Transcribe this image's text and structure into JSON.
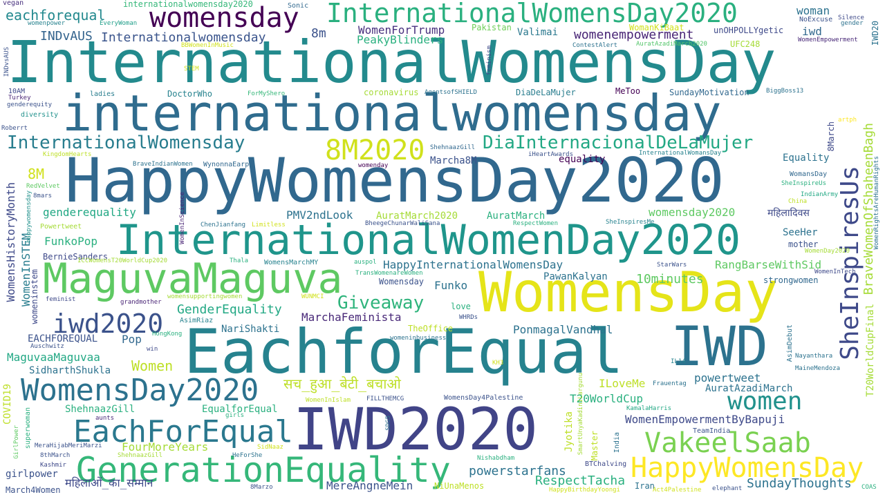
{
  "words": [
    {
      "text": "InternationalWomensDay",
      "color": "#238a8d"
    },
    {
      "text": "internationalwomensday",
      "color": "#2f6c8e"
    },
    {
      "text": "HappyWomensDay2020",
      "color": "#31688e"
    },
    {
      "text": "InternationalWomenDay2020",
      "color": "#1f958b"
    },
    {
      "text": "WomensDay",
      "color": "#e5e419"
    },
    {
      "text": "EachforEqual",
      "color": "#26828e"
    },
    {
      "text": "IWD",
      "color": "#2c728e"
    },
    {
      "text": "IWD2020",
      "color": "#414487"
    },
    {
      "text": "MaguvaMaguva",
      "color": "#5ec962"
    },
    {
      "text": "GenerationEquality",
      "color": "#35b779"
    },
    {
      "text": "EachForEqual",
      "color": "#2a788e"
    },
    {
      "text": "WomensDay2020",
      "color": "#2c728e"
    },
    {
      "text": "HappyWomensDay",
      "color": "#fde725"
    },
    {
      "text": "VakeelSaab",
      "color": "#7ad151"
    },
    {
      "text": "InternationalWomensDay2020",
      "color": "#2ab07f"
    },
    {
      "text": "womensday",
      "color": "#440154"
    },
    {
      "text": "InternationalWomensday",
      "color": "#287d8e"
    },
    {
      "text": "DiaInternacionalDeLaMujer",
      "color": "#22a884"
    },
    {
      "text": "8M2020",
      "color": "#d0e11c"
    },
    {
      "text": "iwd2020",
      "color": "#3b528b"
    },
    {
      "text": "Giveaway",
      "color": "#2fb47c"
    },
    {
      "text": "women",
      "color": "#21918c"
    },
    {
      "text": "SheInspiresUs",
      "color": "#3e4989"
    },
    {
      "text": "eachforequal",
      "color": "#23898e"
    },
    {
      "text": "INDvAUS",
      "color": "#33638d"
    },
    {
      "text": "Internationalwomensday",
      "color": "#3a548c"
    },
    {
      "text": "8m",
      "color": "#3b528b"
    },
    {
      "text": "WomenForTrump",
      "color": "#472f7d"
    },
    {
      "text": "PeakyBlinders",
      "color": "#2ab07f"
    },
    {
      "text": "womenempowerment",
      "color": "#482475"
    },
    {
      "text": "woman",
      "color": "#2c728e"
    },
    {
      "text": "iwd",
      "color": "#31688e"
    },
    {
      "text": "Pakistan",
      "color": "#6ece58"
    },
    {
      "text": "Valimai",
      "color": "#2a788e"
    },
    {
      "text": "unOHPOLLYgetic",
      "color": "#3e4989"
    },
    {
      "text": "NoExcuse",
      "color": "#3b528b"
    },
    {
      "text": "Silence",
      "color": "#3e4989"
    },
    {
      "text": "gender",
      "color": "#2c728e"
    },
    {
      "text": "WomanKiBaat",
      "color": "#d0e11c"
    },
    {
      "text": "UFC248",
      "color": "#a5db36"
    },
    {
      "text": "AuratAzadiMarch2020",
      "color": "#52c569"
    },
    {
      "text": "ContestAlert",
      "color": "#2c728e"
    },
    {
      "text": "WomenEmpowerment",
      "color": "#482878"
    },
    {
      "text": "internationalwomensday2020",
      "color": "#35b779"
    },
    {
      "text": "Sonic",
      "color": "#31688e"
    },
    {
      "text": "vegan",
      "color": "#472f7d"
    },
    {
      "text": "womenpower",
      "color": "#26828e"
    },
    {
      "text": "EveryWoman",
      "color": "#1f9e89"
    },
    {
      "text": "IWD20",
      "color": "#2c728e"
    },
    {
      "text": "INDvsAUS",
      "color": "#3b528b"
    },
    {
      "text": "10AM",
      "color": "#3e4989"
    },
    {
      "text": "Turkey",
      "color": "#482475"
    },
    {
      "text": "genderequity",
      "color": "#3b528b"
    },
    {
      "text": "diversity",
      "color": "#21918c"
    },
    {
      "text": "Roberrt",
      "color": "#3b528b"
    },
    {
      "text": "KingdomHearts",
      "color": "#bddf26"
    },
    {
      "text": "ladies",
      "color": "#287d8e"
    },
    {
      "text": "DoctorWho",
      "color": "#26828e"
    },
    {
      "text": "ForMyShero",
      "color": "#35b779"
    },
    {
      "text": "coronavirus",
      "color": "#a5db36"
    },
    {
      "text": "AgentsofSHIELD",
      "color": "#2c728e"
    },
    {
      "text": "DiaDeLaMujer",
      "color": "#287d8e"
    },
    {
      "text": "MeToo",
      "color": "#440154"
    },
    {
      "text": "SundayMotivation",
      "color": "#31688e"
    },
    {
      "text": "BiggBoss13",
      "color": "#2c728e"
    },
    {
      "text": "feminism",
      "color": "#3e4989"
    },
    {
      "text": "artph",
      "color": "#fde725"
    },
    {
      "text": "ShehnaazGill",
      "color": "#31688e"
    },
    {
      "text": "iHeartAwards",
      "color": "#3b528b"
    },
    {
      "text": "InternationalWomansDay",
      "color": "#26828e"
    },
    {
      "text": "8March",
      "color": "#3e4989"
    },
    {
      "text": "BraveWomenOfShaheenBagh",
      "color": "#a5db36"
    },
    {
      "text": "WomensHistoryMonth",
      "color": "#3e4989"
    },
    {
      "text": "WomenInSTEM",
      "color": "#287d8e"
    },
    {
      "text": "womeninstem",
      "color": "#3e4989"
    },
    {
      "text": "happywomensday",
      "color": "#21918c"
    },
    {
      "text": "RedVelvet",
      "color": "#5ec962"
    },
    {
      "text": "8mars",
      "color": "#3b528b"
    },
    {
      "text": "8M",
      "color": "#d0e11c"
    },
    {
      "text": "BraveIndianWomen",
      "color": "#2c728e"
    },
    {
      "text": "WynonnaEarp",
      "color": "#31688e"
    },
    {
      "text": "womenday",
      "color": "#440154"
    },
    {
      "text": "Equality",
      "color": "#2c728e"
    },
    {
      "text": "equality",
      "color": "#440154"
    },
    {
      "text": "Marcha8M",
      "color": "#3b528b"
    },
    {
      "text": "WomansDay",
      "color": "#31688e"
    },
    {
      "text": "SheInspireUs",
      "color": "#2ab07f"
    },
    {
      "text": "IndianArmy",
      "color": "#22a884"
    },
    {
      "text": "China",
      "color": "#bddf26"
    },
    {
      "text": "WomenRightsAreHumanRights",
      "color": "#2c728e"
    },
    {
      "text": "genderequality",
      "color": "#22a884"
    },
    {
      "text": "PMV2ndLook",
      "color": "#2c728e"
    },
    {
      "text": "AuratMarch2020",
      "color": "#a5db36"
    },
    {
      "text": "AuratMarch",
      "color": "#2ab07f"
    },
    {
      "text": "womensday2020",
      "color": "#5ec962"
    },
    {
      "text": "महिलादिवस",
      "color": "#3e4989"
    },
    {
      "text": "Powertweet",
      "color": "#a5db36"
    },
    {
      "text": "WomenInScience",
      "color": "#482475"
    },
    {
      "text": "ChenJianfang",
      "color": "#2c728e"
    },
    {
      "text": "Limitless",
      "color": "#d0e11c"
    },
    {
      "text": "BheegeChunarWaliSana",
      "color": "#3b528b"
    },
    {
      "text": "RespectWomen",
      "color": "#2ab07f"
    },
    {
      "text": "SheInspiresMe",
      "color": "#26828e"
    },
    {
      "text": "SeeHer",
      "color": "#2c728e"
    },
    {
      "text": "mother",
      "color": "#3b528b"
    },
    {
      "text": "WomenDay2020",
      "color": "#a5db36"
    },
    {
      "text": "FunkoPop",
      "color": "#2ab07f"
    },
    {
      "text": "BernieSanders",
      "color": "#3e4989"
    },
    {
      "text": "ICCWomensT20WorldCup2020",
      "color": "#a5db36"
    },
    {
      "text": "Thala",
      "color": "#2ab07f"
    },
    {
      "text": "WomensMarchMY",
      "color": "#26828e"
    },
    {
      "text": "auspol",
      "color": "#2ab07f"
    },
    {
      "text": "HappyInternationalWomensDay",
      "color": "#2c728e"
    },
    {
      "text": "StarWars",
      "color": "#3b528b"
    },
    {
      "text": "RangBarseWithSid",
      "color": "#5ec962"
    },
    {
      "text": "WomenInTech",
      "color": "#3e4989"
    },
    {
      "text": "PawanKalyan",
      "color": "#2c728e"
    },
    {
      "text": "TransWomenareWomen",
      "color": "#2ab07f"
    },
    {
      "text": "Womensday",
      "color": "#3b528b"
    },
    {
      "text": "Funko",
      "color": "#2c728e"
    },
    {
      "text": "10minutes",
      "color": "#5ec962"
    },
    {
      "text": "strongwomen",
      "color": "#31688e"
    },
    {
      "text": "feminist",
      "color": "#3e4989"
    },
    {
      "text": "grandmother",
      "color": "#482475"
    },
    {
      "text": "womensupportingwomen",
      "color": "#a5db36"
    },
    {
      "text": "WUNMCI",
      "color": "#d0e11c"
    },
    {
      "text": "love",
      "color": "#2ab07f"
    },
    {
      "text": "WHRDs",
      "color": "#3b528b"
    },
    {
      "text": "GenderEquality",
      "color": "#22a884"
    },
    {
      "text": "NariShakti",
      "color": "#2c728e"
    },
    {
      "text": "MarchaFeminista",
      "color": "#482878"
    },
    {
      "text": "AsimRiaz",
      "color": "#26828e"
    },
    {
      "text": "TheOffice",
      "color": "#bddf26"
    },
    {
      "text": "PonmagalVandhal",
      "color": "#2c728e"
    },
    {
      "text": "EACHFOREQUAL",
      "color": "#3b528b"
    },
    {
      "text": "Pop",
      "color": "#31688e"
    },
    {
      "text": "HongKong",
      "color": "#2ab07f"
    },
    {
      "text": "Auschwitz",
      "color": "#3b528b"
    },
    {
      "text": "win",
      "color": "#3e4989"
    },
    {
      "text": "womeninbusiness",
      "color": "#2c728e"
    },
    {
      "text": "AsimDebut",
      "color": "#2c728e"
    },
    {
      "text": "Nayanthara",
      "color": "#2c728e"
    },
    {
      "text": "MaineMendoza",
      "color": "#2c728e"
    },
    {
      "text": "T20WorldCupFinal",
      "color": "#a5db36"
    },
    {
      "text": "IL14",
      "color": "#26828e"
    },
    {
      "text": "MaguvaaMaguvaa",
      "color": "#22a884"
    },
    {
      "text": "Women",
      "color": "#bddf26"
    },
    {
      "text": "KH3",
      "color": "#d0e11c"
    },
    {
      "text": "Frauentag",
      "color": "#2c728e"
    },
    {
      "text": "SidharthShukla",
      "color": "#2c728e"
    },
    {
      "text": "सच_हुआ_बेटी_बचाओ",
      "color": "#bddf26"
    },
    {
      "text": "powertweet",
      "color": "#2c728e"
    },
    {
      "text": "ILoveMe",
      "color": "#bddf26"
    },
    {
      "text": "AuratAzadiMarch",
      "color": "#2c728e"
    },
    {
      "text": "COVID19",
      "color": "#bddf26"
    },
    {
      "text": "T20WorldCup",
      "color": "#2ab07f"
    },
    {
      "text": "WomenInIslam",
      "color": "#bddf26"
    },
    {
      "text": "FILLTHEMCG",
      "color": "#3b528b"
    },
    {
      "text": "WomensDay4Palestine",
      "color": "#3b528b"
    },
    {
      "text": "KamalaHarris",
      "color": "#22a884"
    },
    {
      "text": "ShehnaazGill",
      "color": "#2ab07f"
    },
    {
      "text": "EqualforEqual",
      "color": "#2ab07f"
    },
    {
      "text": "WomenEmpowermentByBapuji",
      "color": "#3e4989"
    },
    {
      "text": "TeamIndia",
      "color": "#3b528b"
    },
    {
      "text": "Jyotika",
      "color": "#bddf26"
    },
    {
      "text": "SmartUnyaKadiniLargunu",
      "color": "#a5db36"
    },
    {
      "text": "Master",
      "color": "#bddf26"
    },
    {
      "text": "India",
      "color": "#2c728e"
    },
    {
      "text": "superwoman",
      "color": "#2ab07f"
    },
    {
      "text": "aunts",
      "color": "#482878"
    },
    {
      "text": "girls",
      "color": "#2ab07f"
    },
    {
      "text": "SDG5",
      "color": "#2c728e"
    },
    {
      "text": "GirlPower",
      "color": "#5ec962"
    },
    {
      "text": "MeraHijabMeriMarzi",
      "color": "#3b528b"
    },
    {
      "text": "FourMoreYears",
      "color": "#a5db36"
    },
    {
      "text": "SidNaaz",
      "color": "#d0e11c"
    },
    {
      "text": "8thMarch",
      "color": "#3b528b"
    },
    {
      "text": "ShehnaazGill",
      "color": "#a5db36"
    },
    {
      "text": "HeForShe",
      "color": "#2c728e"
    },
    {
      "text": "Nishabdham",
      "color": "#2ab07f"
    },
    {
      "text": "powerstarfans",
      "color": "#2c728e"
    },
    {
      "text": "Kashmir",
      "color": "#3e4989"
    },
    {
      "text": "BTChalving",
      "color": "#3e4989"
    },
    {
      "text": "RespectTacha",
      "color": "#2ab07f"
    },
    {
      "text": "SundayThoughts",
      "color": "#2c728e"
    },
    {
      "text": "girlpower",
      "color": "#3b528b"
    },
    {
      "text": "March4Women",
      "color": "#3b528b"
    },
    {
      "text": "महिलाओं_का_सम्मान",
      "color": "#3e4989"
    },
    {
      "text": "8Marzo",
      "color": "#3b528b"
    },
    {
      "text": "MereAngneMein",
      "color": "#3b528b"
    },
    {
      "text": "NiUnaMenos",
      "color": "#bddf26"
    },
    {
      "text": "HappyBirthdayYoongi",
      "color": "#d0e11c"
    },
    {
      "text": "Iran",
      "color": "#2c728e"
    },
    {
      "text": "Act4Palestine",
      "color": "#d0e11c"
    },
    {
      "text": "elephant",
      "color": "#3b528b"
    },
    {
      "text": "COAS",
      "color": "#2ab07f"
    },
    {
      "text": "STEM",
      "color": "#d0e11c"
    },
    {
      "text": "BBWomenInMusic",
      "color": "#d0e11c"
    }
  ]
}
